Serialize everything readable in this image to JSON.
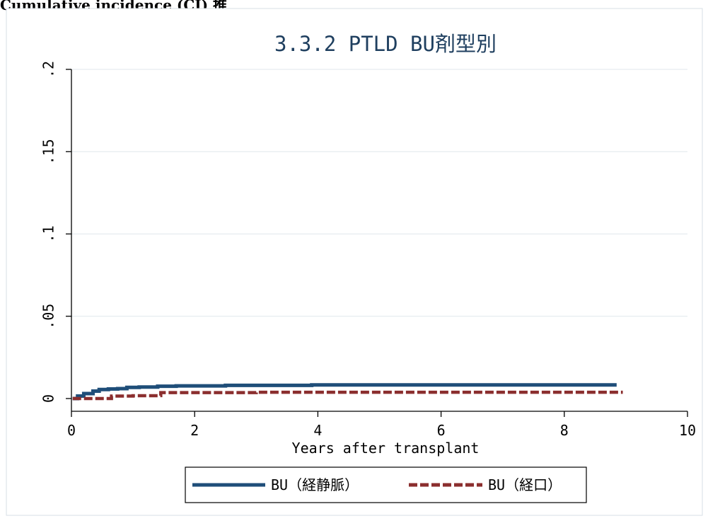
{
  "header_fragment": "Cumulative incidence (CI) 推",
  "chart_data": {
    "type": "line",
    "title": "3.3.2 PTLD BU剤型別",
    "xlabel": "Years after transplant",
    "ylabel": "",
    "xlim": [
      0,
      10
    ],
    "ylim": [
      0,
      0.2
    ],
    "x_ticks": [
      0,
      2,
      4,
      6,
      8,
      10
    ],
    "x_tick_labels": [
      "0",
      "2",
      "4",
      "6",
      "8",
      "10"
    ],
    "y_ticks": [
      0,
      0.05,
      0.1,
      0.15,
      0.2
    ],
    "y_tick_labels": [
      "0",
      ".05",
      ".1",
      ".15",
      ".2"
    ],
    "grid": true,
    "legend_position": "bottom",
    "series": [
      {
        "name": "BU（経静脈）",
        "color": "#1f4e79",
        "style": "solid",
        "x": [
          0.02,
          0.1,
          0.2,
          0.35,
          0.45,
          0.6,
          0.75,
          0.9,
          1.1,
          1.4,
          1.7,
          2.0,
          2.5,
          3.0,
          3.5,
          3.9,
          4.5,
          5.5,
          6.5,
          7.5,
          8.85
        ],
        "y": [
          0,
          0.0015,
          0.003,
          0.0045,
          0.0055,
          0.0058,
          0.006,
          0.0068,
          0.007,
          0.0075,
          0.0077,
          0.0077,
          0.008,
          0.008,
          0.008,
          0.0083,
          0.0083,
          0.0083,
          0.0083,
          0.0083,
          0.0083
        ]
      },
      {
        "name": "BU（経口）",
        "color": "#8b2e2e",
        "style": "dashed",
        "x": [
          0.02,
          0.3,
          0.6,
          0.65,
          1.0,
          1.4,
          1.45,
          2.0,
          3.0,
          4.0,
          5.0,
          6.0,
          7.0,
          8.0,
          8.95
        ],
        "y": [
          0,
          0,
          0,
          0.0015,
          0.0017,
          0.0018,
          0.0036,
          0.0036,
          0.0038,
          0.0038,
          0.0038,
          0.0038,
          0.0038,
          0.0038,
          0.0038
        ]
      }
    ]
  }
}
